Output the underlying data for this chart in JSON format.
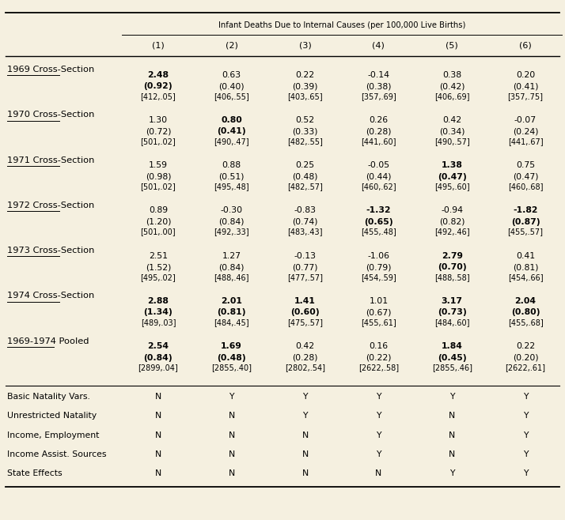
{
  "header_main": "Infant Deaths Due to Internal Causes (per 100,000 Live Births)",
  "columns": [
    "(1)",
    "(2)",
    "(3)",
    "(4)",
    "(5)",
    "(6)"
  ],
  "bg_color": "#f5f0e0",
  "rows": [
    {
      "label": "1969 Cross-Section",
      "coefs": [
        "2.48",
        "0.63",
        "0.22",
        "-0.14",
        "0.38",
        "0.20"
      ],
      "ses": [
        "(0.92)",
        "(0.40)",
        "(0.39)",
        "(0.38)",
        "(0.42)",
        "(0.41)"
      ],
      "extra": [
        "[412,.05]",
        "[406,.55]",
        "[403,.65]",
        "[357,.69]",
        "[406,.69]",
        "[357,.75]"
      ],
      "bold_coef": [
        true,
        false,
        false,
        false,
        false,
        false
      ],
      "bold_se": [
        true,
        false,
        false,
        false,
        false,
        false
      ]
    },
    {
      "label": "1970 Cross-Section",
      "coefs": [
        "1.30",
        "0.80",
        "0.52",
        "0.26",
        "0.42",
        "-0.07"
      ],
      "ses": [
        "(0.72)",
        "(0.41)",
        "(0.33)",
        "(0.28)",
        "(0.34)",
        "(0.24)"
      ],
      "extra": [
        "[501,.02]",
        "[490,.47]",
        "[482,.55]",
        "[441,.60]",
        "[490,.57]",
        "[441,.67]"
      ],
      "bold_coef": [
        false,
        true,
        false,
        false,
        false,
        false
      ],
      "bold_se": [
        false,
        true,
        false,
        false,
        false,
        false
      ]
    },
    {
      "label": "1971 Cross-Section",
      "coefs": [
        "1.59",
        "0.88",
        "0.25",
        "-0.05",
        "1.38",
        "0.75"
      ],
      "ses": [
        "(0.98)",
        "(0.51)",
        "(0.48)",
        "(0.44)",
        "(0.47)",
        "(0.47)"
      ],
      "extra": [
        "[501,.02]",
        "[495,.48]",
        "[482,.57]",
        "[460,.62]",
        "[495,.60]",
        "[460,.68]"
      ],
      "bold_coef": [
        false,
        false,
        false,
        false,
        true,
        false
      ],
      "bold_se": [
        false,
        false,
        false,
        false,
        true,
        false
      ]
    },
    {
      "label": "1972 Cross-Section",
      "coefs": [
        "0.89",
        "-0.30",
        "-0.83",
        "-1.32",
        "-0.94",
        "-1.82"
      ],
      "ses": [
        "(1.20)",
        "(0.84)",
        "(0.74)",
        "(0.65)",
        "(0.82)",
        "(0.87)"
      ],
      "extra": [
        "[501,.00]",
        "[492,.33]",
        "[483,.43]",
        "[455,.48]",
        "[492,.46]",
        "[455,.57]"
      ],
      "bold_coef": [
        false,
        false,
        false,
        true,
        false,
        true
      ],
      "bold_se": [
        false,
        false,
        false,
        true,
        false,
        true
      ]
    },
    {
      "label": "1973 Cross-Section",
      "coefs": [
        "2.51",
        "1.27",
        "-0.13",
        "-1.06",
        "2.79",
        "0.41"
      ],
      "ses": [
        "(1.52)",
        "(0.84)",
        "(0.77)",
        "(0.79)",
        "(0.70)",
        "(0.81)"
      ],
      "extra": [
        "[495,.02]",
        "[488,.46]",
        "[477,.57]",
        "[454,.59]",
        "[488,.58]",
        "[454,.66]"
      ],
      "bold_coef": [
        false,
        false,
        false,
        false,
        true,
        false
      ],
      "bold_se": [
        false,
        false,
        false,
        false,
        true,
        false
      ]
    },
    {
      "label": "1974 Cross-Section",
      "coefs": [
        "2.88",
        "2.01",
        "1.41",
        "1.01",
        "3.17",
        "2.04"
      ],
      "ses": [
        "(1.34)",
        "(0.81)",
        "(0.60)",
        "(0.67)",
        "(0.73)",
        "(0.80)"
      ],
      "extra": [
        "[489,.03]",
        "[484,.45]",
        "[475,.57]",
        "[455,.61]",
        "[484,.60]",
        "[455,.68]"
      ],
      "bold_coef": [
        true,
        true,
        true,
        false,
        true,
        true
      ],
      "bold_se": [
        true,
        true,
        true,
        false,
        true,
        true
      ]
    },
    {
      "label": "1969-1974 Pooled",
      "coefs": [
        "2.54",
        "1.69",
        "0.42",
        "0.16",
        "1.84",
        "0.22"
      ],
      "ses": [
        "(0.84)",
        "(0.48)",
        "(0.28)",
        "(0.22)",
        "(0.45)",
        "(0.20)"
      ],
      "extra": [
        "[2899,.04]",
        "[2855,.40]",
        "[2802,.54]",
        "[2622,.58]",
        "[2855,.46]",
        "[2622,.61]"
      ],
      "bold_coef": [
        true,
        true,
        false,
        false,
        true,
        false
      ],
      "bold_se": [
        true,
        true,
        false,
        false,
        true,
        false
      ]
    }
  ],
  "footer_rows": [
    {
      "label": "Basic Natality Vars.",
      "values": [
        "N",
        "Y",
        "Y",
        "Y",
        "Y",
        "Y"
      ]
    },
    {
      "label": "Unrestricted Natality",
      "values": [
        "N",
        "N",
        "Y",
        "Y",
        "N",
        "Y"
      ]
    },
    {
      "label": "Income, Employment",
      "values": [
        "N",
        "N",
        "N",
        "Y",
        "N",
        "Y"
      ]
    },
    {
      "label": "Income Assist. Sources",
      "values": [
        "N",
        "N",
        "N",
        "Y",
        "N",
        "Y"
      ]
    },
    {
      "label": "State Effects",
      "values": [
        "N",
        "N",
        "N",
        "N",
        "Y",
        "Y"
      ]
    }
  ]
}
